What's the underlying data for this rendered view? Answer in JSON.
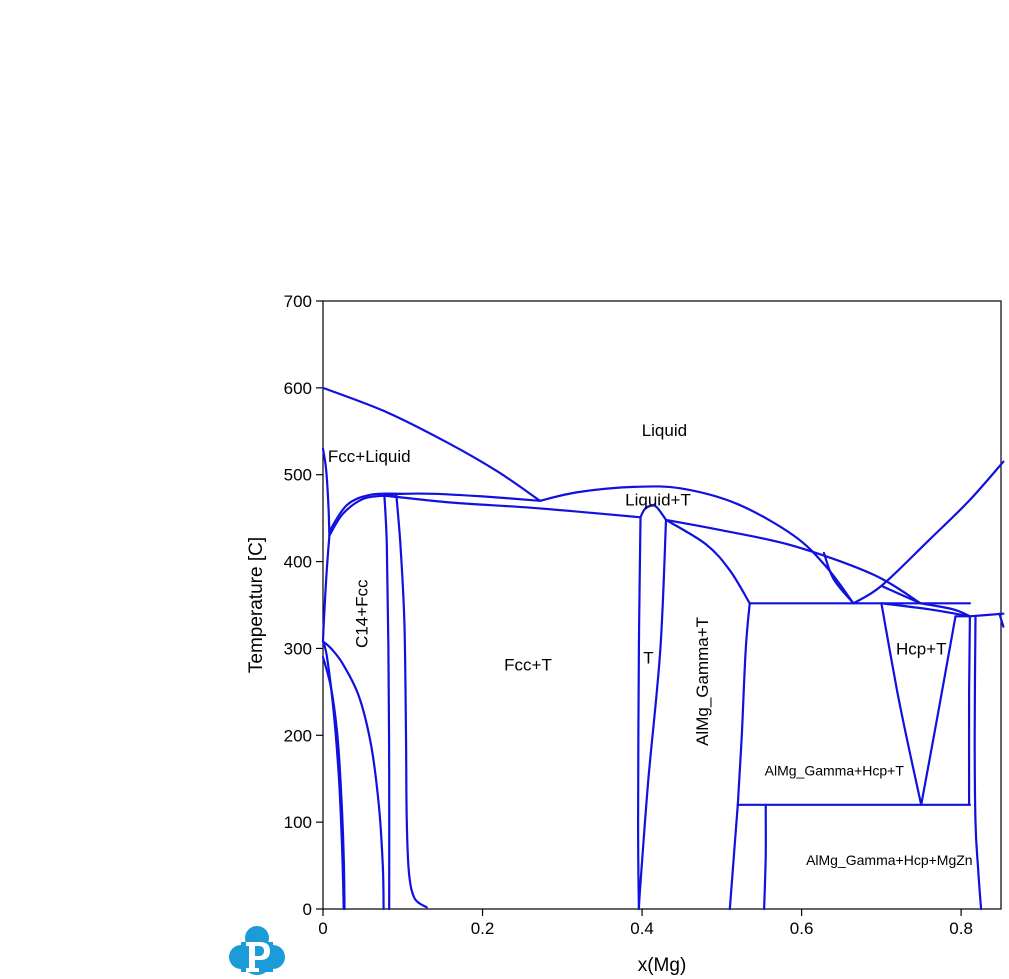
{
  "chart_data": {
    "type": "line",
    "xlabel": "x(Mg)",
    "ylabel": "Temperature [C]",
    "xlim": [
      0,
      0.85
    ],
    "ylim": [
      0,
      700
    ],
    "xticks": [
      {
        "value": 0,
        "label": "0"
      },
      {
        "value": 0.2,
        "label": "0.2"
      },
      {
        "value": 0.4,
        "label": "0.4"
      },
      {
        "value": 0.6,
        "label": "0.6"
      },
      {
        "value": 0.8,
        "label": "0.8"
      }
    ],
    "yticks": [
      {
        "value": 0,
        "label": "0"
      },
      {
        "value": 100,
        "label": "100"
      },
      {
        "value": 200,
        "label": "200"
      },
      {
        "value": 300,
        "label": "300"
      },
      {
        "value": 400,
        "label": "400"
      },
      {
        "value": 500,
        "label": "500"
      },
      {
        "value": 600,
        "label": "600"
      },
      {
        "value": 700,
        "label": "700"
      }
    ],
    "line_color": "#1010e0",
    "grid": false,
    "region_labels": [
      {
        "text": "Liquid",
        "x": 0.428,
        "y": 550,
        "size": 17,
        "rotate": 0
      },
      {
        "text": "Fcc+Liquid",
        "x": 0.058,
        "y": 520,
        "size": 17,
        "rotate": 0
      },
      {
        "text": "Liquid+T",
        "x": 0.42,
        "y": 470,
        "size": 17,
        "rotate": 0
      },
      {
        "text": "C14+Fcc",
        "x": 0.05,
        "y": 340,
        "size": 17,
        "rotate": -90
      },
      {
        "text": "Fcc+T",
        "x": 0.257,
        "y": 280,
        "size": 17,
        "rotate": 0
      },
      {
        "text": "T",
        "x": 0.408,
        "y": 288,
        "size": 17,
        "rotate": 0
      },
      {
        "text": "AlMg_Gamma+T",
        "x": 0.477,
        "y": 262,
        "size": 17,
        "rotate": -90
      },
      {
        "text": "Hcp+T",
        "x": 0.75,
        "y": 298,
        "size": 17,
        "rotate": 0
      },
      {
        "text": "AlMg_Gamma+Hcp+T",
        "x": 0.641,
        "y": 158,
        "size": 14,
        "rotate": 0
      },
      {
        "text": "AlMg_Gamma+Hcp+MgZn",
        "x": 0.71,
        "y": 55,
        "size": 14,
        "rotate": 0
      }
    ],
    "series": [
      {
        "points": [
          [
            0,
            600
          ],
          [
            0.08,
            572
          ],
          [
            0.16,
            535
          ],
          [
            0.22,
            503
          ],
          [
            0.272,
            470
          ]
        ]
      },
      {
        "points": [
          [
            0.272,
            470
          ],
          [
            0.32,
            480
          ],
          [
            0.39,
            486
          ],
          [
            0.45,
            484
          ],
          [
            0.52,
            466
          ],
          [
            0.59,
            430
          ],
          [
            0.63,
            395
          ],
          [
            0.665,
            352
          ]
        ]
      },
      {
        "points": [
          [
            0.272,
            470
          ],
          [
            0.2,
            475
          ],
          [
            0.14,
            478
          ],
          [
            0.1,
            478
          ],
          [
            0.077,
            476
          ]
        ]
      },
      {
        "points": [
          [
            0.077,
            476
          ],
          [
            0.16,
            468
          ],
          [
            0.26,
            462
          ],
          [
            0.35,
            455
          ],
          [
            0.398,
            451
          ]
        ]
      },
      {
        "points": [
          [
            0.398,
            451
          ],
          [
            0.403,
            460
          ],
          [
            0.41,
            464
          ],
          [
            0.418,
            463
          ],
          [
            0.43,
            448
          ]
        ]
      },
      {
        "points": [
          [
            0.43,
            448
          ],
          [
            0.5,
            436
          ],
          [
            0.59,
            418
          ],
          [
            0.69,
            385
          ],
          [
            0.749,
            352
          ]
        ]
      },
      {
        "points": [
          [
            0.0,
            530
          ],
          [
            0.004,
            505
          ],
          [
            0.007,
            460
          ],
          [
            0.008,
            430
          ]
        ]
      },
      {
        "points": [
          [
            0.008,
            430
          ],
          [
            0.025,
            455
          ],
          [
            0.05,
            472
          ],
          [
            0.077,
            476
          ]
        ]
      },
      {
        "points": [
          [
            0.008,
            435
          ],
          [
            0.03,
            465
          ],
          [
            0.06,
            477
          ],
          [
            0.1,
            478
          ]
        ]
      },
      {
        "points": [
          [
            0.008,
            430
          ],
          [
            0.004,
            380
          ],
          [
            0.001,
            330
          ],
          [
            0.0,
            308
          ]
        ]
      },
      {
        "points": [
          [
            0.0,
            308
          ],
          [
            0.01,
            300
          ],
          [
            0.025,
            282
          ],
          [
            0.045,
            245
          ],
          [
            0.06,
            190
          ],
          [
            0.07,
            120
          ],
          [
            0.075,
            50
          ],
          [
            0.076,
            0
          ]
        ]
      },
      {
        "points": [
          [
            0.0,
            290
          ],
          [
            0.01,
            255
          ],
          [
            0.018,
            200
          ],
          [
            0.023,
            130
          ],
          [
            0.026,
            60
          ],
          [
            0.027,
            0
          ]
        ]
      },
      {
        "points": [
          [
            0.0,
            308
          ],
          [
            0.005,
            290
          ],
          [
            0.013,
            230
          ],
          [
            0.02,
            150
          ],
          [
            0.024,
            70
          ],
          [
            0.026,
            0
          ]
        ]
      },
      {
        "points": [
          [
            0.077,
            476
          ],
          [
            0.08,
            420
          ],
          [
            0.082,
            300
          ],
          [
            0.083,
            150
          ],
          [
            0.083,
            0
          ]
        ]
      },
      {
        "points": [
          [
            0.092,
            476
          ],
          [
            0.097,
            420
          ],
          [
            0.102,
            330
          ],
          [
            0.104,
            200
          ],
          [
            0.105,
            100
          ],
          [
            0.108,
            40
          ],
          [
            0.115,
            12
          ],
          [
            0.13,
            2
          ]
        ]
      },
      {
        "points": [
          [
            0.398,
            451
          ],
          [
            0.396,
            300
          ],
          [
            0.395,
            100
          ],
          [
            0.396,
            0
          ]
        ]
      },
      {
        "points": [
          [
            0.43,
            448
          ],
          [
            0.423,
            300
          ],
          [
            0.408,
            150
          ],
          [
            0.398,
            30
          ],
          [
            0.396,
            0
          ]
        ]
      },
      {
        "points": [
          [
            0.43,
            448
          ],
          [
            0.48,
            420
          ],
          [
            0.51,
            390
          ],
          [
            0.535,
            352
          ]
        ]
      },
      {
        "points": [
          [
            0.665,
            352
          ],
          [
            0.64,
            380
          ],
          [
            0.628,
            410
          ]
        ]
      },
      {
        "points": [
          [
            0.535,
            352
          ],
          [
            0.811,
            352
          ]
        ]
      },
      {
        "points": [
          [
            0.535,
            352
          ],
          [
            0.53,
            300
          ],
          [
            0.525,
            200
          ],
          [
            0.52,
            120
          ]
        ]
      },
      {
        "points": [
          [
            0.52,
            120
          ],
          [
            0.811,
            120
          ]
        ]
      },
      {
        "points": [
          [
            0.52,
            120
          ],
          [
            0.515,
            60
          ],
          [
            0.51,
            0
          ]
        ]
      },
      {
        "points": [
          [
            0.555,
            120
          ],
          [
            0.555,
            60
          ],
          [
            0.553,
            0
          ]
        ]
      },
      {
        "points": [
          [
            0.665,
            352
          ],
          [
            0.7,
            372
          ],
          [
            0.76,
            425
          ],
          [
            0.81,
            470
          ],
          [
            0.853,
            515
          ]
        ]
      },
      {
        "points": [
          [
            0.7,
            372
          ],
          [
            0.749,
            352
          ]
        ]
      },
      {
        "points": [
          [
            0.7,
            352
          ],
          [
            0.72,
            250
          ],
          [
            0.738,
            170
          ],
          [
            0.75,
            120
          ]
        ]
      },
      {
        "points": [
          [
            0.75,
            120
          ],
          [
            0.77,
            220
          ],
          [
            0.793,
            337
          ]
        ]
      },
      {
        "points": [
          [
            0.7,
            352
          ],
          [
            0.76,
            345
          ],
          [
            0.811,
            337
          ]
        ]
      },
      {
        "points": [
          [
            0.749,
            352
          ],
          [
            0.79,
            345
          ],
          [
            0.811,
            337
          ]
        ]
      },
      {
        "points": [
          [
            0.793,
            337
          ],
          [
            0.811,
            337
          ]
        ]
      },
      {
        "points": [
          [
            0.811,
            337
          ],
          [
            0.853,
            340
          ]
        ]
      },
      {
        "points": [
          [
            0.811,
            337
          ],
          [
            0.81,
            250
          ],
          [
            0.81,
            120
          ]
        ]
      },
      {
        "points": [
          [
            0.818,
            337
          ],
          [
            0.817,
            200
          ],
          [
            0.818,
            100
          ],
          [
            0.821,
            50
          ],
          [
            0.825,
            0
          ]
        ]
      },
      {
        "points": [
          [
            0.848,
            340
          ],
          [
            0.853,
            325
          ]
        ]
      }
    ]
  }
}
